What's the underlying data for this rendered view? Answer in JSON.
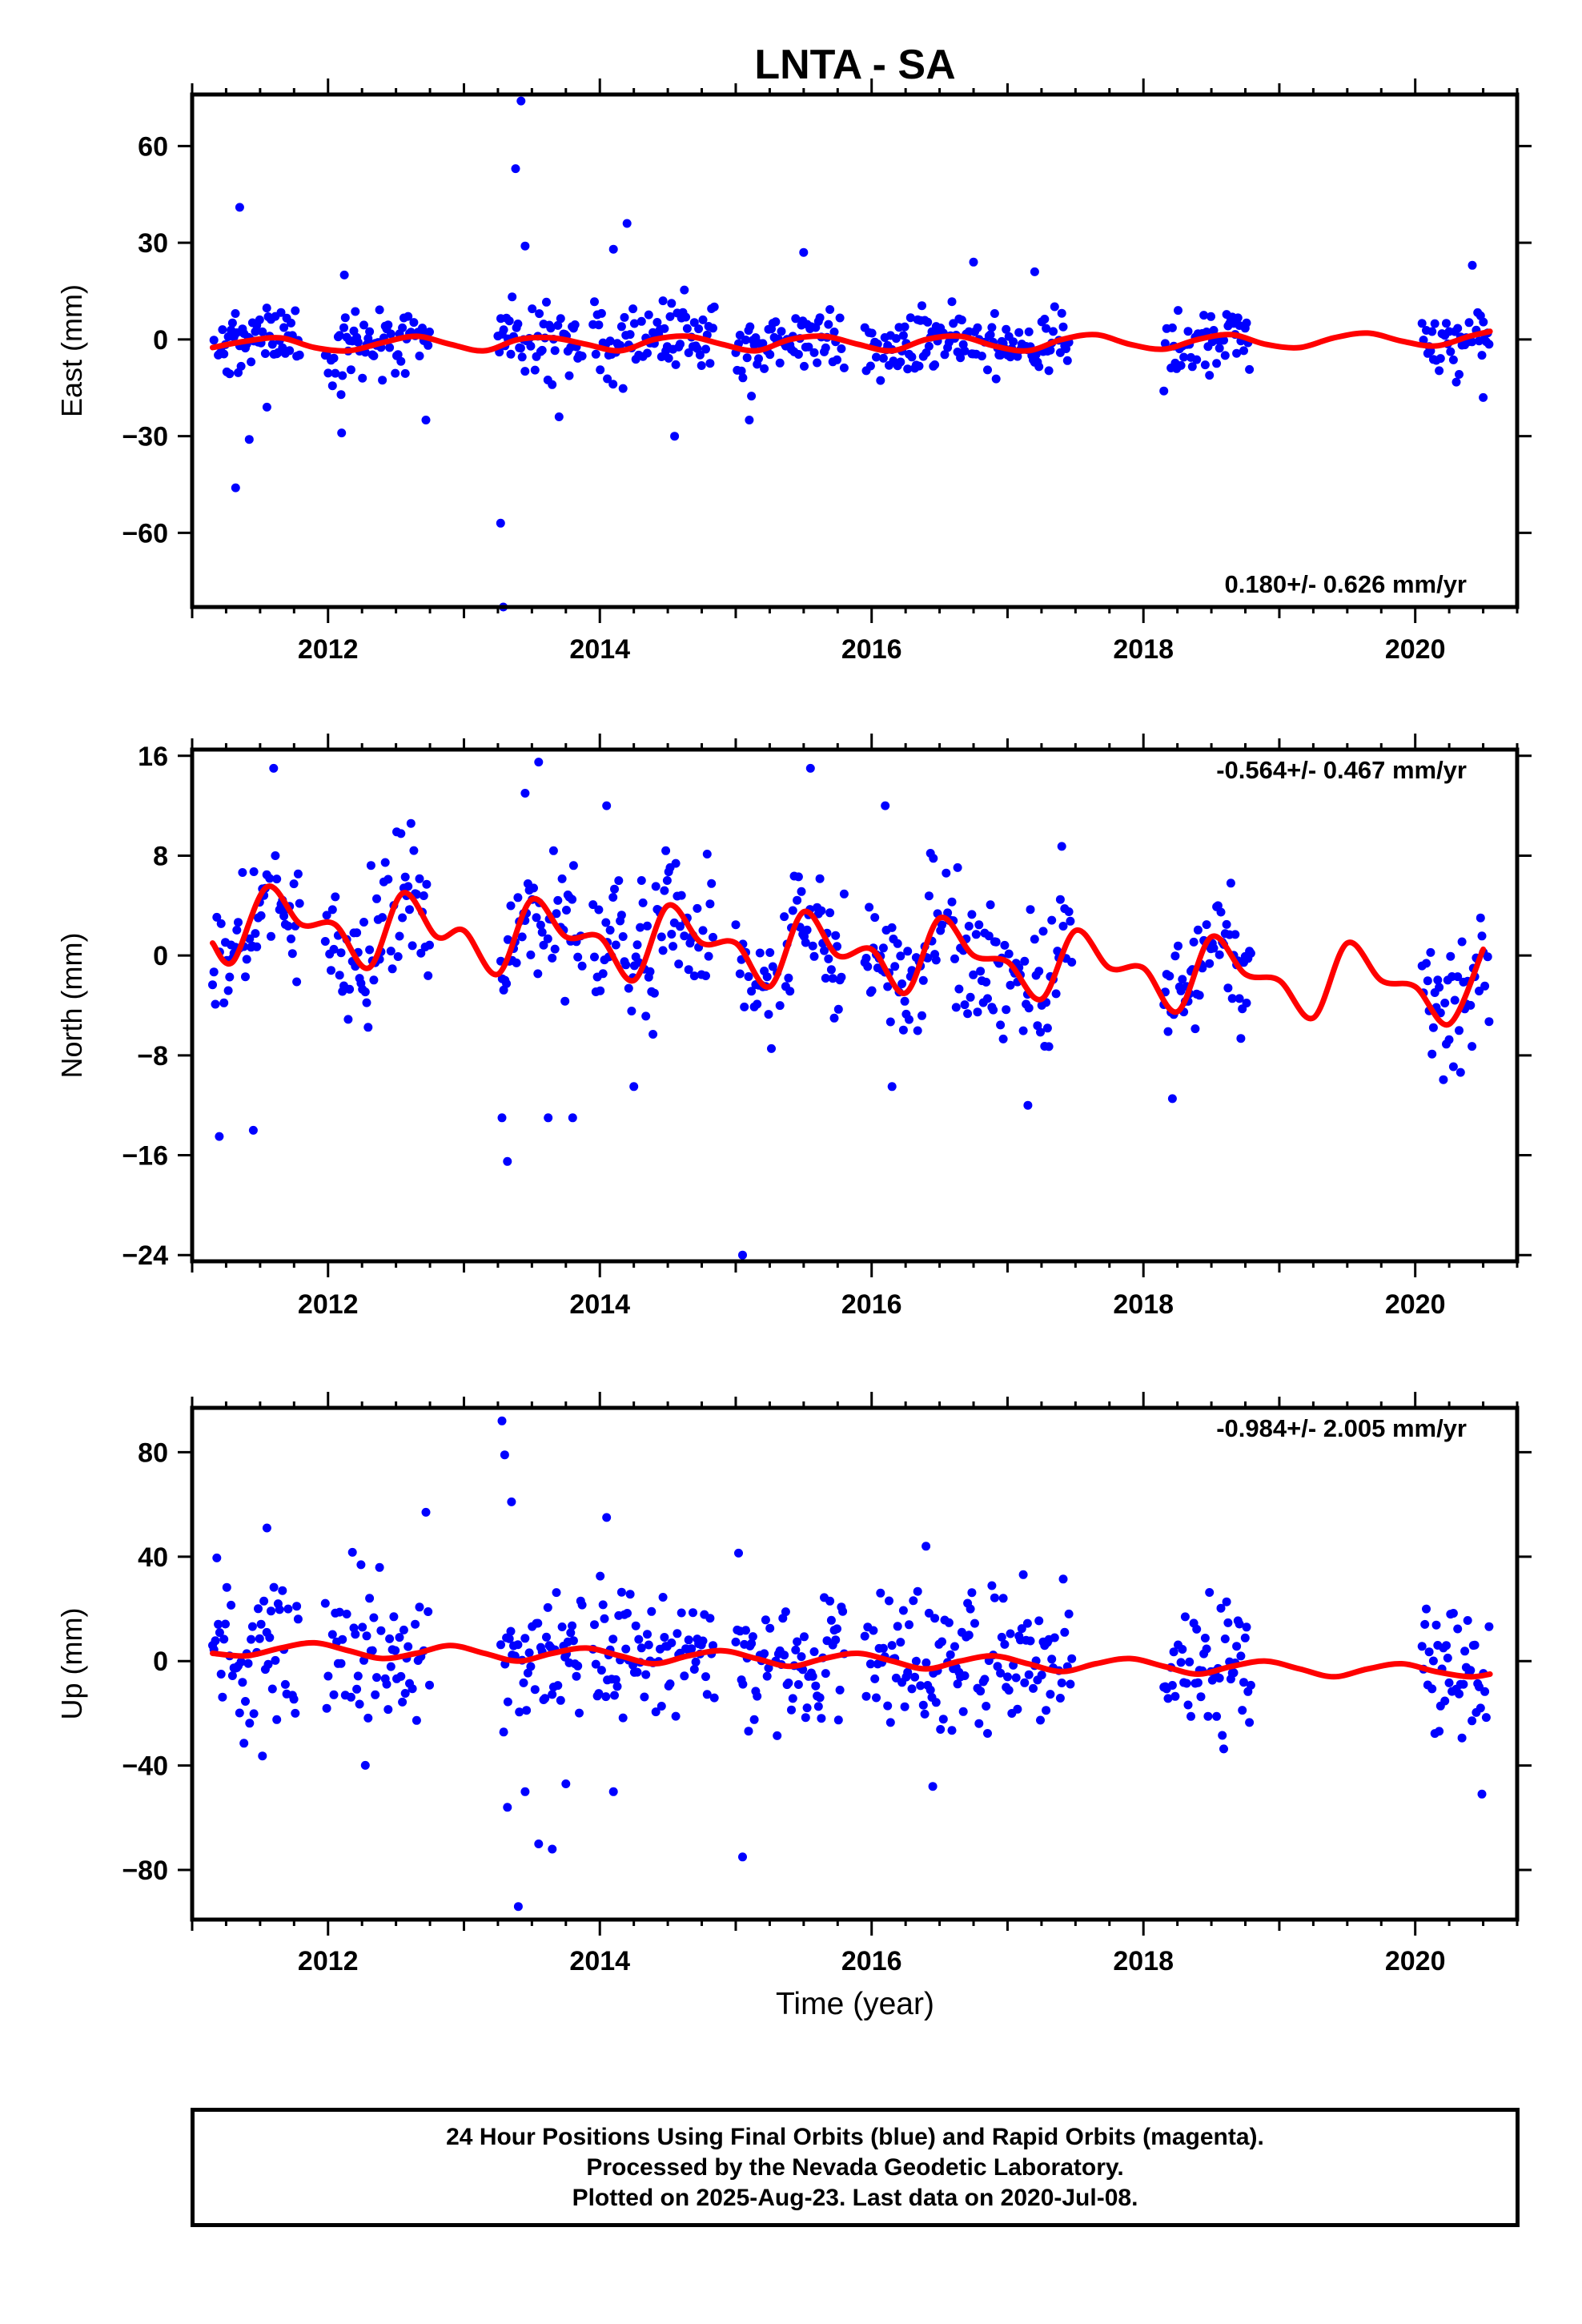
{
  "title": "LNTA - SA",
  "xlabel": "Time (year)",
  "caption": {
    "line1": "24 Hour Positions Using Final Orbits (blue) and Rapid Orbits (magenta).",
    "line2": "Processed by the Nevada Geodetic Laboratory.",
    "line3": "Plotted on 2025-Aug-23. Last data on 2020-Jul-08."
  },
  "colors": {
    "points": "#0000ff",
    "fit": "#ff0000",
    "axes": "#000000"
  },
  "chart_data": [
    {
      "type": "scatter",
      "ylabel": "East (mm)",
      "rate": "0.180+/- 0.626 mm/yr",
      "xlim": [
        2011.0,
        2020.75
      ],
      "ylim": [
        -83,
        76
      ],
      "xticks": [
        2012,
        2014,
        2016,
        2018,
        2020
      ],
      "yticks": [
        -60,
        -30,
        0,
        30,
        60
      ],
      "data_segments": [
        [
          2011.15,
          2011.8
        ],
        [
          2011.98,
          2012.75
        ],
        [
          2013.25,
          2013.88
        ],
        [
          2013.95,
          2014.85
        ],
        [
          2015.0,
          2015.8
        ],
        [
          2015.95,
          2017.48
        ],
        [
          2018.15,
          2018.8
        ],
        [
          2020.05,
          2020.55
        ]
      ],
      "noise_sd": 5,
      "outliers": [
        [
          2011.35,
          41
        ],
        [
          2011.42,
          -31
        ],
        [
          2011.32,
          -46
        ],
        [
          2011.55,
          -21
        ],
        [
          2012.12,
          20
        ],
        [
          2012.1,
          -29
        ],
        [
          2012.72,
          -25
        ],
        [
          2013.27,
          -57
        ],
        [
          2013.29,
          -83
        ],
        [
          2013.38,
          53
        ],
        [
          2013.42,
          74
        ],
        [
          2013.45,
          29
        ],
        [
          2013.7,
          -24
        ],
        [
          2014.2,
          36
        ],
        [
          2014.1,
          28
        ],
        [
          2014.55,
          -30
        ],
        [
          2015.1,
          -25
        ],
        [
          2015.5,
          27
        ],
        [
          2016.75,
          24
        ],
        [
          2017.2,
          21
        ],
        [
          2020.42,
          23
        ],
        [
          2020.5,
          -18
        ]
      ],
      "fit": {
        "x": [
          2011.15,
          2011.4,
          2011.65,
          2011.9,
          2012.15,
          2012.4,
          2012.65,
          2012.9,
          2013.15,
          2013.4,
          2013.65,
          2013.9,
          2014.15,
          2014.4,
          2014.65,
          2014.9,
          2015.15,
          2015.4,
          2015.65,
          2015.9,
          2016.15,
          2016.4,
          2016.65,
          2016.9,
          2017.15,
          2017.4,
          2017.65,
          2017.9,
          2018.15,
          2018.4,
          2018.65,
          2018.9,
          2019.15,
          2019.4,
          2019.65,
          2019.9,
          2020.15,
          2020.4,
          2020.55
        ],
        "y": [
          -2.5,
          -0.5,
          0.5,
          -2.5,
          -3.5,
          -1,
          1,
          -1.5,
          -3.5,
          0,
          0.5,
          -1.5,
          -3.5,
          0,
          1,
          -1.5,
          -3.5,
          0,
          1,
          -1.5,
          -3.5,
          0,
          1,
          -2,
          -3.5,
          0,
          1.5,
          -1.5,
          -3,
          0,
          1.5,
          -1.5,
          -2.5,
          0.5,
          2,
          -0.5,
          -2,
          1,
          2.5
        ]
      }
    },
    {
      "type": "scatter",
      "ylabel": "North (mm)",
      "rate": "-0.564+/- 0.467 mm/yr",
      "xlim": [
        2011.0,
        2020.75
      ],
      "ylim": [
        -24.5,
        16.5
      ],
      "xticks": [
        2012,
        2014,
        2016,
        2018,
        2020
      ],
      "yticks": [
        -24,
        -16,
        -8,
        0,
        8,
        16
      ],
      "data_segments": [
        [
          2011.15,
          2011.8
        ],
        [
          2011.98,
          2012.75
        ],
        [
          2013.25,
          2013.88
        ],
        [
          2013.95,
          2014.85
        ],
        [
          2015.0,
          2015.8
        ],
        [
          2015.95,
          2017.48
        ],
        [
          2018.15,
          2018.8
        ],
        [
          2020.05,
          2020.55
        ]
      ],
      "noise_sd": 2.8,
      "outliers": [
        [
          2011.2,
          -14.5
        ],
        [
          2011.45,
          -14
        ],
        [
          2011.6,
          15
        ],
        [
          2013.28,
          -13
        ],
        [
          2013.32,
          -16.5
        ],
        [
          2013.45,
          13
        ],
        [
          2013.55,
          15.5
        ],
        [
          2013.62,
          -13
        ],
        [
          2013.8,
          -13
        ],
        [
          2014.05,
          12
        ],
        [
          2014.25,
          -10.5
        ],
        [
          2015.05,
          -24
        ],
        [
          2015.55,
          15
        ],
        [
          2016.1,
          12
        ],
        [
          2016.15,
          -10.5
        ],
        [
          2017.15,
          -12
        ]
      ],
      "fit": {
        "x": [
          2011.15,
          2011.3,
          2011.55,
          2011.8,
          2012.05,
          2012.3,
          2012.55,
          2012.8,
          2013.0,
          2013.25,
          2013.5,
          2013.75,
          2014.0,
          2014.25,
          2014.5,
          2014.75,
          2015.0,
          2015.25,
          2015.5,
          2015.75,
          2016.0,
          2016.25,
          2016.5,
          2016.75,
          2017.0,
          2017.25,
          2017.5,
          2017.75,
          2018.0,
          2018.25,
          2018.5,
          2018.75,
          2019.0,
          2019.25,
          2019.5,
          2019.75,
          2020.0,
          2020.25,
          2020.5
        ],
        "y": [
          1.0,
          -0.5,
          5.5,
          2.5,
          2.5,
          -1.0,
          5.0,
          1.5,
          2.0,
          -1.5,
          4.5,
          1.5,
          1.5,
          -2.0,
          4.0,
          1.0,
          1.0,
          -2.5,
          3.5,
          0.0,
          0.5,
          -3.0,
          3.0,
          0.0,
          -0.5,
          -3.5,
          2.0,
          -1.0,
          -1.0,
          -4.5,
          1.5,
          -1.5,
          -2.0,
          -5.0,
          1.0,
          -2.0,
          -2.5,
          -5.5,
          0.5
        ]
      }
    },
    {
      "type": "scatter",
      "ylabel": "Up (mm)",
      "rate": "-0.984+/- 2.005 mm/yr",
      "xlim": [
        2011.0,
        2020.75
      ],
      "ylim": [
        -99,
        97
      ],
      "xticks": [
        2012,
        2014,
        2016,
        2018,
        2020
      ],
      "yticks": [
        -80,
        -40,
        0,
        40,
        80
      ],
      "data_segments": [
        [
          2011.15,
          2011.8
        ],
        [
          2011.98,
          2012.75
        ],
        [
          2013.25,
          2013.88
        ],
        [
          2013.95,
          2014.85
        ],
        [
          2015.0,
          2015.8
        ],
        [
          2015.95,
          2017.48
        ],
        [
          2018.15,
          2018.8
        ],
        [
          2020.05,
          2020.55
        ]
      ],
      "noise_sd": 14,
      "outliers": [
        [
          2011.55,
          51
        ],
        [
          2012.72,
          57
        ],
        [
          2013.28,
          92
        ],
        [
          2013.3,
          79
        ],
        [
          2013.35,
          61
        ],
        [
          2013.32,
          -56
        ],
        [
          2013.4,
          -94
        ],
        [
          2013.45,
          -50
        ],
        [
          2013.55,
          -70
        ],
        [
          2013.65,
          -72
        ],
        [
          2013.75,
          -47
        ],
        [
          2014.05,
          55
        ],
        [
          2014.1,
          -50
        ],
        [
          2015.05,
          -75
        ],
        [
          2016.4,
          44
        ],
        [
          2016.45,
          -48
        ]
      ],
      "fit": {
        "x": [
          2011.15,
          2011.4,
          2011.65,
          2011.9,
          2012.15,
          2012.4,
          2012.65,
          2012.9,
          2013.15,
          2013.4,
          2013.65,
          2013.9,
          2014.15,
          2014.4,
          2014.65,
          2014.9,
          2015.15,
          2015.4,
          2015.65,
          2015.9,
          2016.15,
          2016.4,
          2016.65,
          2016.9,
          2017.15,
          2017.4,
          2017.65,
          2017.9,
          2018.15,
          2018.4,
          2018.65,
          2018.9,
          2019.15,
          2019.4,
          2019.65,
          2019.9,
          2020.15,
          2020.4,
          2020.55
        ],
        "y": [
          3,
          2,
          5,
          7,
          4,
          1,
          3,
          6,
          3,
          0,
          3,
          5,
          2,
          -1,
          2,
          4,
          1,
          -2,
          1,
          3,
          0,
          -3,
          0,
          2,
          -1,
          -4,
          -1,
          1,
          -2,
          -5,
          -2,
          0,
          -3,
          -6,
          -3,
          -1,
          -4,
          -6,
          -5
        ]
      }
    }
  ]
}
